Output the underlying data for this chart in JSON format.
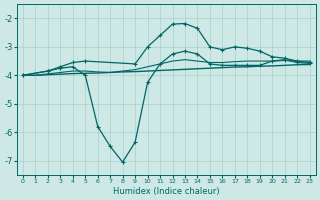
{
  "xlabel": "Humidex (Indice chaleur)",
  "xlim": [
    -0.5,
    23.5
  ],
  "ylim": [
    -7.5,
    -1.5
  ],
  "yticks": [
    -7,
    -6,
    -5,
    -4,
    -3,
    -2
  ],
  "xticks": [
    0,
    1,
    2,
    3,
    4,
    5,
    6,
    7,
    8,
    9,
    10,
    11,
    12,
    13,
    14,
    15,
    16,
    17,
    18,
    19,
    20,
    21,
    22,
    23
  ],
  "background_color": "#cde8e5",
  "grid_color": "#aad0cc",
  "line_color": "#006666",
  "lines": [
    {
      "x": [
        0,
        1,
        2,
        3,
        4,
        5,
        6,
        7,
        8,
        9,
        10,
        11,
        12,
        13,
        14,
        15,
        16,
        17,
        18,
        19,
        20,
        21,
        22,
        23
      ],
      "y": [
        -4.0,
        -4.0,
        -3.98,
        -3.96,
        -3.94,
        -3.93,
        -3.92,
        -3.9,
        -3.88,
        -3.87,
        -3.85,
        -3.83,
        -3.81,
        -3.79,
        -3.77,
        -3.75,
        -3.73,
        -3.71,
        -3.7,
        -3.68,
        -3.67,
        -3.65,
        -3.63,
        -3.62
      ],
      "marker": false,
      "lw": 1.0
    },
    {
      "x": [
        0,
        1,
        2,
        3,
        4,
        5,
        6,
        7,
        8,
        9,
        10,
        11,
        12,
        13,
        14,
        15,
        16,
        17,
        18,
        19,
        20,
        21,
        22,
        23
      ],
      "y": [
        -4.0,
        -4.0,
        -3.95,
        -3.9,
        -3.85,
        -3.85,
        -3.88,
        -3.9,
        -3.85,
        -3.8,
        -3.7,
        -3.6,
        -3.5,
        -3.45,
        -3.5,
        -3.55,
        -3.55,
        -3.52,
        -3.5,
        -3.5,
        -3.5,
        -3.48,
        -3.5,
        -3.5
      ],
      "marker": false,
      "lw": 0.8
    },
    {
      "x": [
        0,
        2,
        3,
        4,
        5,
        9,
        10,
        11,
        12,
        13,
        14,
        15,
        16,
        17,
        18,
        19,
        20,
        21,
        22,
        23
      ],
      "y": [
        -4.0,
        -3.85,
        -3.7,
        -3.55,
        -3.5,
        -3.6,
        -3.0,
        -2.6,
        -2.2,
        -2.18,
        -2.35,
        -3.0,
        -3.1,
        -3.0,
        -3.05,
        -3.15,
        -3.35,
        -3.4,
        -3.5,
        -3.55
      ],
      "marker": true,
      "lw": 0.9
    },
    {
      "x": [
        0,
        2,
        3,
        4,
        5,
        6,
        7,
        8,
        9,
        10,
        11,
        12,
        13,
        14,
        15,
        16,
        17,
        18,
        19,
        20,
        21,
        22,
        23
      ],
      "y": [
        -4.0,
        -3.85,
        -3.75,
        -3.7,
        -4.0,
        -5.8,
        -6.5,
        -7.05,
        -6.35,
        -4.25,
        -3.6,
        -3.25,
        -3.15,
        -3.25,
        -3.6,
        -3.65,
        -3.65,
        -3.65,
        -3.65,
        -3.5,
        -3.45,
        -3.55,
        -3.58
      ],
      "marker": true,
      "lw": 0.9
    }
  ]
}
